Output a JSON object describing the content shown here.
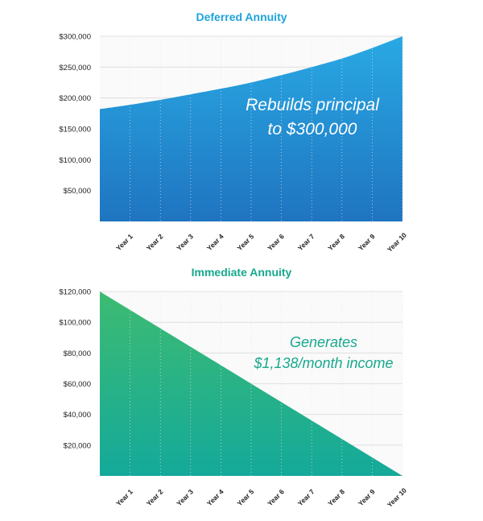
{
  "chart_data": [
    {
      "type": "area",
      "title": "Deferred Annuity",
      "categories": [
        "Year 1",
        "Year 2",
        "Year 3",
        "Year 4",
        "Year 5",
        "Year 6",
        "Year 7",
        "Year 8",
        "Year 9",
        "Year 10"
      ],
      "y_ticks": [
        "$300,000",
        "$250,000",
        "$200,000",
        "$150,000",
        "$100,000",
        "$50,000"
      ],
      "ylim": [
        0,
        300000
      ],
      "x": [
        0,
        1,
        2,
        3,
        4,
        5,
        6,
        7,
        8,
        9,
        10
      ],
      "values": [
        182000,
        189000,
        197000,
        206000,
        215000,
        225000,
        237000,
        250000,
        264000,
        281000,
        300000
      ],
      "annotation": [
        "Rebuilds principal",
        "to $300,000"
      ],
      "colors": {
        "top": "#29a9e4",
        "bottom": "#1f74c0",
        "title": "#1da4da",
        "annotation": "#ffffff"
      },
      "grid": true
    },
    {
      "type": "area",
      "title": "Immediate Annuity",
      "categories": [
        "Year 1",
        "Year 2",
        "Year 3",
        "Year 4",
        "Year 5",
        "Year 6",
        "Year 7",
        "Year 8",
        "Year 9",
        "Year 10"
      ],
      "y_ticks": [
        "$120,000",
        "$100,000",
        "$80,000",
        "$60,000",
        "$40,000",
        "$20,000"
      ],
      "ylim": [
        0,
        120000
      ],
      "x": [
        0,
        10
      ],
      "values": [
        120000,
        0
      ],
      "annotation": [
        "Generates",
        "$1,138/month income"
      ],
      "colors": {
        "top": "#3dbb72",
        "bottom": "#14a99a",
        "title": "#17a88e",
        "annotation": "#17a88e"
      },
      "grid": true
    }
  ]
}
